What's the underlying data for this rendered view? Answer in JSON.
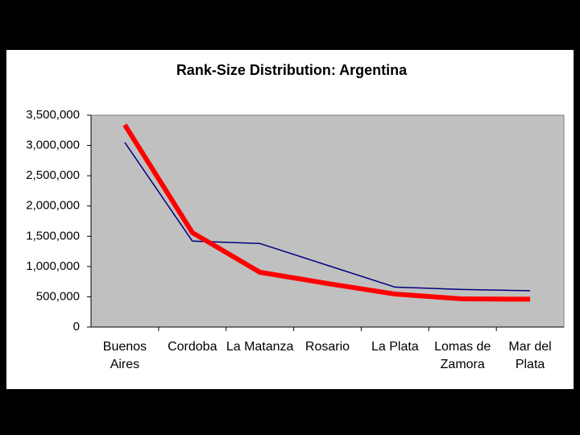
{
  "chart_data": {
    "type": "line",
    "title": "Rank-Size Distribution: Argentina",
    "categories": [
      "Buenos Aires",
      "Cordoba",
      "La Matanza",
      "Rosario",
      "La Plata",
      "Lomas de Zamora",
      "Mar del Plata"
    ],
    "series": [
      {
        "color": "#000080",
        "values": [
          3050000,
          1420000,
          1380000,
          1020000,
          660000,
          620000,
          600000
        ]
      },
      {
        "color": "#ff0000",
        "values": [
          3340000,
          1560000,
          905000,
          720000,
          545000,
          465000,
          460000
        ]
      }
    ],
    "ylim": [
      0,
      3500000
    ],
    "yticks": [
      0,
      {
        "value": 500000,
        "label": "500,000"
      },
      {
        "value": 1000000,
        "label": "1,000,000"
      },
      {
        "value": 1500000,
        "label": "1,500,000"
      },
      {
        "value": 2000000,
        "label": "2,000,000"
      },
      {
        "value": 2500000,
        "label": "2,500,000"
      },
      {
        "value": 3000000,
        "label": "3,000,000"
      },
      {
        "value": 3500000,
        "label": "3,500,000"
      }
    ],
    "plot_background": "#c0c0c0"
  }
}
